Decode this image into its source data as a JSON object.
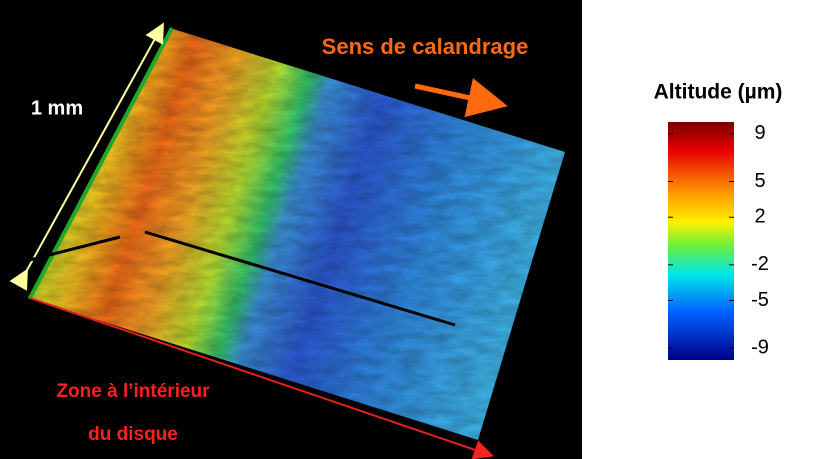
{
  "annotations": {
    "scale_label": "1 mm",
    "direction_label": "Sens de calandrage",
    "zone_label_line1": "Zone à l’intérieur",
    "zone_label_line2": "du disque"
  },
  "colorbar": {
    "title": "Altitude (µm)",
    "lim": [
      -10,
      10
    ],
    "ticks": [
      9,
      5,
      2,
      -2,
      -5,
      -9
    ]
  }
}
